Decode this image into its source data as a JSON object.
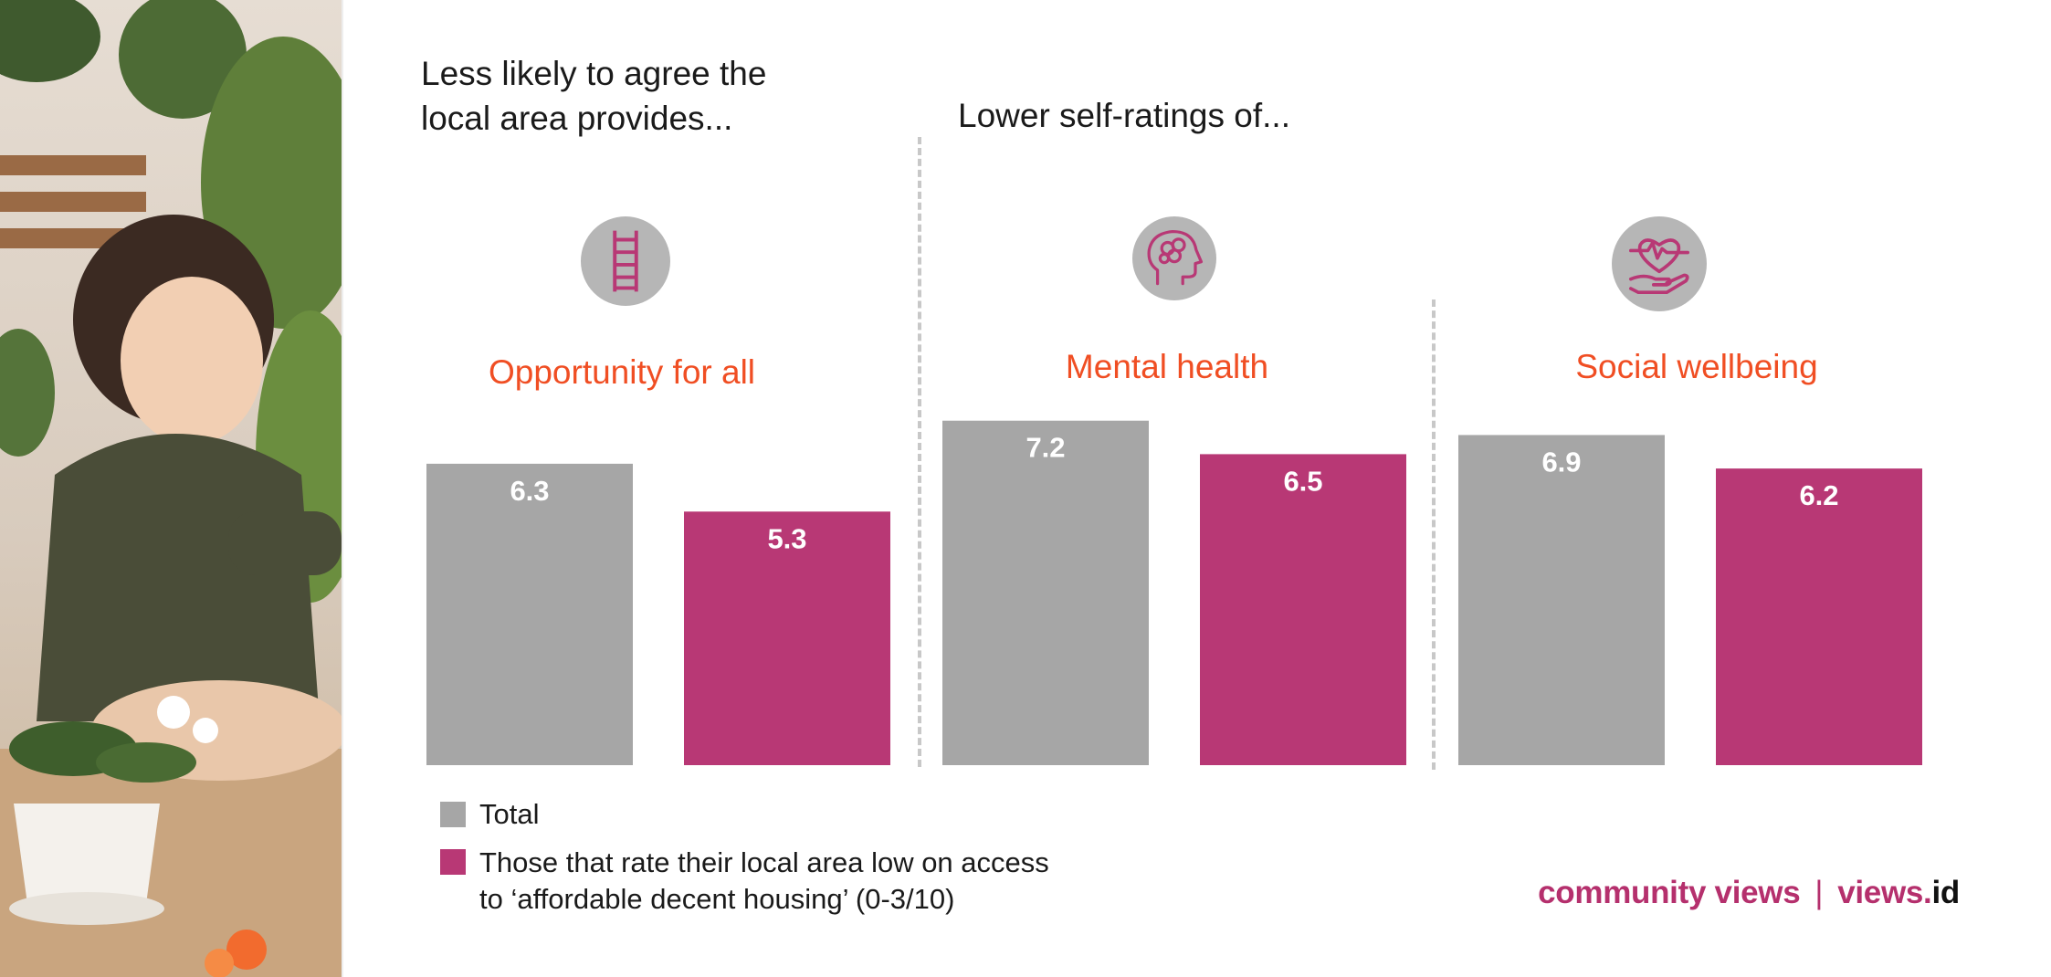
{
  "headings": {
    "left_line1": "Less likely to agree the",
    "left_line2": "local area provides...",
    "right": "Lower self-ratings of..."
  },
  "colors": {
    "total": "#a6a6a6",
    "low_rating": "#b83875",
    "category_label": "#f04e23",
    "brand": "#b5306d"
  },
  "icons": [
    "ladder-icon",
    "brain-head-icon",
    "heart-hand-icon"
  ],
  "chart_data": {
    "type": "bar",
    "categories": [
      "Opportunity for all",
      "Mental health",
      "Social wellbeing"
    ],
    "series": [
      {
        "name": "Total",
        "values": [
          6.3,
          7.2,
          6.9
        ]
      },
      {
        "name": "Those that rate their local area low on access to ‘affordable decent housing’ (0-3/10)",
        "values": [
          5.3,
          6.5,
          6.2
        ]
      }
    ],
    "ylim": [
      0,
      10
    ],
    "grid": false,
    "legend": "bottom-left",
    "title": "",
    "xlabel": "",
    "ylabel": ""
  },
  "legend": {
    "total": "Total",
    "low_line1": "Those that rate their local area low on access",
    "low_line2": "to ‘affordable decent housing’ (0-3/10)"
  },
  "brand": {
    "part1": "community views",
    "separator": "|",
    "part2": "views.",
    "part3": "id"
  }
}
